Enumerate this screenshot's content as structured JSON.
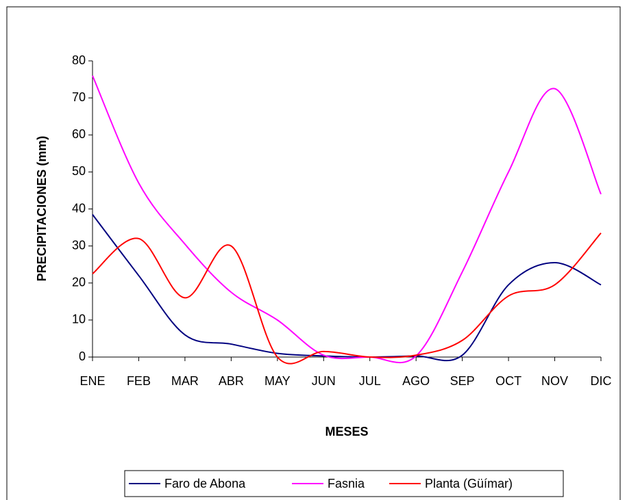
{
  "chart_data": {
    "type": "line",
    "y_label": "PRECIPITACIONES (mm)",
    "x_label": "MESES",
    "categories": [
      "ENE",
      "FEB",
      "MAR",
      "ABR",
      "MAY",
      "JUN",
      "JUL",
      "AGO",
      "SEP",
      "OCT",
      "NOV",
      "DIC"
    ],
    "series": [
      {
        "name": "Faro de Abona",
        "color": "#000080",
        "values": [
          38.5,
          22,
          6,
          3.5,
          1,
          0.3,
          0,
          0.3,
          0.5,
          19.5,
          25.5,
          19.5
        ]
      },
      {
        "name": "Fasnia",
        "color": "#ff00ff",
        "values": [
          76,
          47,
          30.5,
          17.5,
          10,
          0.5,
          0,
          0.3,
          23,
          50,
          72.5,
          44
        ]
      },
      {
        "name": "Planta (Güímar)",
        "color": "#ff0000",
        "values": [
          22.5,
          32,
          16,
          30,
          0,
          1.5,
          0,
          0.5,
          4.5,
          16.5,
          19.5,
          33.5
        ]
      }
    ],
    "ylim": [
      0,
      80
    ],
    "yticks": [
      0,
      10,
      20,
      30,
      40,
      50,
      60,
      70,
      80
    ],
    "smooth": true,
    "legend": "bottom"
  }
}
